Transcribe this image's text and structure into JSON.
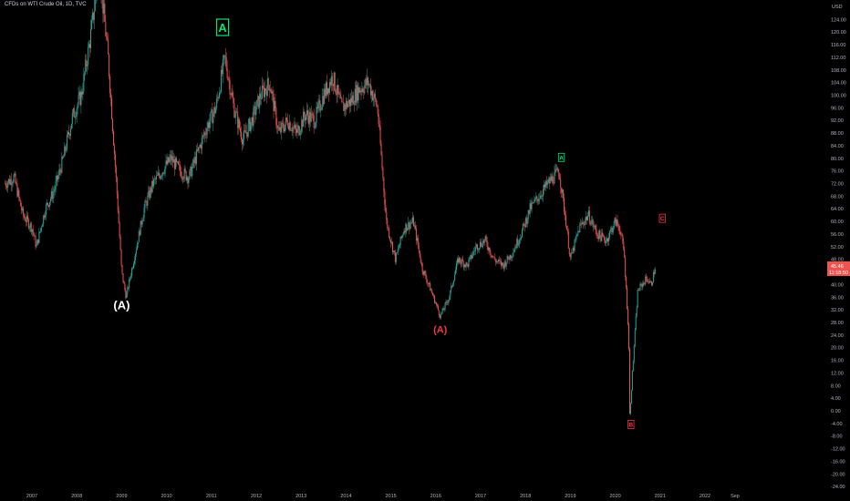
{
  "header": {
    "title": "CFDs on WTI Crude Oil, 1D, TVC"
  },
  "price_axis": {
    "currency": "USD",
    "last_price_label": "45.46",
    "countdown_label": "11:18:50",
    "last_price_color": "#ef5350"
  },
  "colors": {
    "background": "#000000",
    "up_candle": "#26a69a",
    "down_candle": "#ef5350",
    "label_white": "#ffffff",
    "label_green": "#00e676",
    "label_red": "#f23645"
  },
  "chart_data": {
    "type": "line",
    "title": "CFDs on WTI Crude Oil, 1D, TVC",
    "y_ticks": [
      124,
      120,
      116,
      112,
      108,
      104,
      100,
      96,
      92,
      88,
      84,
      80,
      76,
      72,
      68,
      64,
      60,
      56,
      52,
      48,
      44,
      40,
      36,
      32,
      28,
      24,
      20,
      16,
      12,
      8,
      4,
      0,
      -4,
      -8,
      -12,
      -16,
      -20,
      -24
    ],
    "y_tick_labels": [
      "124.00",
      "120.00",
      "116.00",
      "112.00",
      "108.00",
      "104.00",
      "100.00",
      "96.00",
      "92.00",
      "88.00",
      "84.00",
      "80.00",
      "76.00",
      "72.00",
      "68.00",
      "64.00",
      "60.00",
      "56.00",
      "52.00",
      "48.00",
      "44.00",
      "40.00",
      "36.00",
      "32.00",
      "28.00",
      "24.00",
      "20.00",
      "16.00",
      "12.00",
      "8.00",
      "4.00",
      "0.00",
      "-4.00",
      "-8.00",
      "-12.00",
      "-16.00",
      "-20.00",
      "-24.00"
    ],
    "ylim": [
      -28,
      128
    ],
    "x_ticks": [
      "2007",
      "2008",
      "2009",
      "2010",
      "2011",
      "2012",
      "2013",
      "2014",
      "2015",
      "2016",
      "2017",
      "2018",
      "2019",
      "2020",
      "2021",
      "2022",
      "Sep"
    ],
    "x_tick_years": [
      2007,
      2008,
      2009,
      2010,
      2011,
      2012,
      2013,
      2014,
      2015,
      2016,
      2017,
      2018,
      2019,
      2020,
      2021,
      2022,
      2022.67
    ],
    "xlim": [
      2006.4,
      2024.5
    ],
    "series": [
      {
        "x": [
          2006.4,
          2006.6,
          2006.8,
          2007.0,
          2007.1,
          2007.3,
          2007.5,
          2007.7,
          2007.9,
          2008.1,
          2008.3,
          2008.5,
          2008.7,
          2008.9,
          2009.0,
          2009.1,
          2009.3,
          2009.5,
          2009.7,
          2009.9,
          2010.1,
          2010.3,
          2010.5,
          2010.7,
          2010.9,
          2011.1,
          2011.3,
          2011.5,
          2011.7,
          2011.9,
          2012.1,
          2012.3,
          2012.5,
          2012.7,
          2012.9,
          2013.1,
          2013.3,
          2013.5,
          2013.7,
          2013.9,
          2014.1,
          2014.3,
          2014.5,
          2014.7,
          2014.9,
          2015.1,
          2015.3,
          2015.5,
          2015.7,
          2015.9,
          2016.1,
          2016.3,
          2016.5,
          2016.7,
          2016.9,
          2017.1,
          2017.3,
          2017.5,
          2017.7,
          2017.9,
          2018.1,
          2018.3,
          2018.5,
          2018.75,
          2018.9,
          2019.0,
          2019.2,
          2019.4,
          2019.6,
          2019.8,
          2020.0,
          2020.1,
          2020.2,
          2020.3,
          2020.32,
          2020.4,
          2020.5,
          2020.6,
          2020.7,
          2020.8,
          2020.9
        ],
        "values": [
          72,
          74,
          62,
          58,
          52,
          64,
          70,
          80,
          93,
          100,
          118,
          140,
          112,
          68,
          44,
          36,
          50,
          64,
          72,
          76,
          80,
          76,
          74,
          82,
          90,
          96,
          112,
          96,
          86,
          92,
          100,
          104,
          88,
          92,
          88,
          94,
          92,
          100,
          106,
          96,
          98,
          102,
          104,
          96,
          60,
          48,
          58,
          60,
          45,
          38,
          30,
          36,
          48,
          46,
          52,
          54,
          48,
          46,
          50,
          56,
          64,
          68,
          72,
          76,
          60,
          48,
          58,
          62,
          56,
          54,
          60,
          58,
          50,
          24,
          -2,
          16,
          38,
          40,
          42,
          40,
          46
        ]
      }
    ],
    "wave_labels": [
      {
        "text": "(A)",
        "x": 2009.0,
        "y": 33.5,
        "color": "#ffffff",
        "size": "big"
      },
      {
        "text": "A",
        "x": 2011.25,
        "y": 121.5,
        "color": "#00e676",
        "size": "box-big"
      },
      {
        "text": "(A)",
        "x": 2016.1,
        "y": 25.7,
        "color": "#f23645",
        "size": "mid"
      },
      {
        "text": "A",
        "x": 2018.8,
        "y": 80.3,
        "color": "#00e676",
        "size": "box-small"
      },
      {
        "text": "B",
        "x": 2020.35,
        "y": -4.3,
        "color": "#f23645",
        "size": "box-small"
      },
      {
        "text": "C",
        "x": 2021.05,
        "y": 61.0,
        "color": "#f23645",
        "size": "box-small"
      }
    ]
  }
}
